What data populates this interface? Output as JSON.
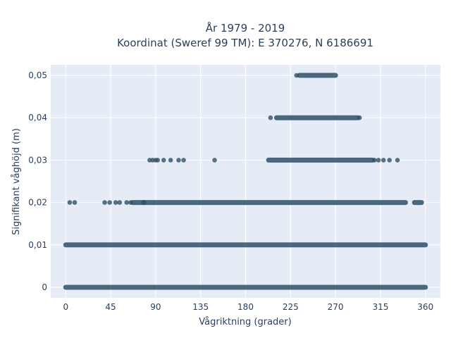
{
  "chart_data": {
    "type": "scatter",
    "title_line1": "År 1979 - 2019",
    "title_line2": "Koordinat (Sweref 99 TM): E 370276, N 6186691",
    "xlabel": "Vågriktning (grader)",
    "ylabel": "Signifikant våghöjd (m)",
    "xlim": [
      -15,
      375
    ],
    "ylim": [
      -0.0025,
      0.0525
    ],
    "xticks": [
      0,
      45,
      90,
      135,
      180,
      225,
      270,
      315,
      360
    ],
    "xtick_labels": [
      "0",
      "45",
      "90",
      "135",
      "180",
      "225",
      "270",
      "315",
      "360"
    ],
    "yticks": [
      0,
      0.01,
      0.02,
      0.03,
      0.04,
      0.05
    ],
    "ytick_labels": [
      "0",
      "0,01",
      "0,02",
      "0,03",
      "0,04",
      "0,05"
    ],
    "grid": true,
    "marker_color": "#2f4f66",
    "plot_background": "#e5ecf6",
    "rows": [
      {
        "y": 0.0,
        "dense_ranges": [
          [
            0,
            360
          ]
        ],
        "isolated_x": []
      },
      {
        "y": 0.01,
        "dense_ranges": [
          [
            0,
            360
          ]
        ],
        "isolated_x": []
      },
      {
        "y": 0.02,
        "dense_ranges": [
          [
            67,
            78
          ],
          [
            78,
            340
          ],
          [
            349,
            356
          ]
        ],
        "isolated_x": [
          4,
          9,
          39,
          44,
          50,
          54,
          61,
          65
        ]
      },
      {
        "y": 0.03,
        "dense_ranges": [
          [
            203,
            307
          ]
        ],
        "isolated_x": [
          84,
          87,
          90,
          92,
          98,
          105,
          113,
          118,
          149,
          309,
          313,
          318,
          324,
          332
        ]
      },
      {
        "y": 0.04,
        "dense_ranges": [
          [
            211,
            292
          ]
        ],
        "isolated_x": [
          205,
          294
        ]
      },
      {
        "y": 0.05,
        "dense_ranges": [
          [
            234,
            270
          ]
        ],
        "isolated_x": [
          231
        ]
      }
    ]
  }
}
